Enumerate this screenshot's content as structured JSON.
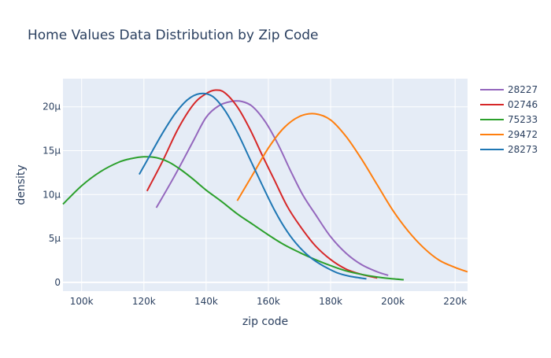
{
  "chart_data": {
    "type": "line",
    "title": "Home Values Data Distribution by Zip Code",
    "xlabel": "zip code",
    "ylabel": "density",
    "xlim": [
      94000,
      224000
    ],
    "ylim": [
      -1.0,
      23.2
    ],
    "y_unit": "μ",
    "grid": true,
    "legend_position": "right",
    "x_ticks": [
      {
        "value": 100000,
        "label": "100k"
      },
      {
        "value": 120000,
        "label": "120k"
      },
      {
        "value": 140000,
        "label": "140k"
      },
      {
        "value": 160000,
        "label": "160k"
      },
      {
        "value": 180000,
        "label": "180k"
      },
      {
        "value": 200000,
        "label": "200k"
      },
      {
        "value": 220000,
        "label": "220k"
      }
    ],
    "y_ticks": [
      {
        "value": 0,
        "label": "0"
      },
      {
        "value": 5,
        "label": "5μ"
      },
      {
        "value": 10,
        "label": "10μ"
      },
      {
        "value": 15,
        "label": "15μ"
      },
      {
        "value": 20,
        "label": "20μ"
      }
    ],
    "series": [
      {
        "name": "28227",
        "color": "#9467bd",
        "x": [
          124000,
          130000,
          136000,
          140000,
          144000,
          148000,
          151500,
          155000,
          159000,
          163000,
          167000,
          171000,
          175000,
          180000,
          185000,
          190000,
          195000,
          198500
        ],
        "y": [
          8.5,
          12.2,
          16.2,
          18.8,
          20.1,
          20.6,
          20.6,
          20.0,
          18.3,
          15.8,
          12.8,
          10.0,
          7.8,
          5.2,
          3.3,
          2.0,
          1.2,
          0.8
        ]
      },
      {
        "name": "02746",
        "color": "#d62728",
        "x": [
          121000,
          126000,
          131000,
          136000,
          140000,
          143000,
          146000,
          150000,
          154000,
          158000,
          162000,
          166000,
          170000,
          175000,
          180000,
          185000,
          190000,
          195000
        ],
        "y": [
          10.4,
          13.8,
          17.5,
          20.3,
          21.5,
          21.9,
          21.6,
          20.0,
          17.5,
          14.5,
          11.6,
          8.7,
          6.5,
          4.2,
          2.6,
          1.5,
          0.9,
          0.5
        ]
      },
      {
        "name": "75233",
        "color": "#2ca02c",
        "x": [
          94000,
          100000,
          106000,
          112000,
          116000,
          120000,
          124000,
          128000,
          132000,
          136000,
          140000,
          145000,
          150000,
          155000,
          160000,
          165000,
          170000,
          175000,
          180000,
          185000,
          190000,
          195000,
          200000,
          203500
        ],
        "y": [
          8.9,
          11.0,
          12.6,
          13.7,
          14.1,
          14.3,
          14.2,
          13.7,
          12.8,
          11.7,
          10.5,
          9.2,
          7.8,
          6.6,
          5.4,
          4.3,
          3.4,
          2.6,
          1.9,
          1.3,
          0.9,
          0.6,
          0.4,
          0.3
        ]
      },
      {
        "name": "29472",
        "color": "#ff7f0e",
        "x": [
          150000,
          155000,
          160000,
          165000,
          170000,
          175000,
          180000,
          185000,
          190000,
          195000,
          200000,
          205000,
          210000,
          215000,
          220000,
          224000
        ],
        "y": [
          9.3,
          12.3,
          15.3,
          17.6,
          18.9,
          19.2,
          18.5,
          16.6,
          14.0,
          11.1,
          8.2,
          5.8,
          3.9,
          2.5,
          1.7,
          1.2
        ]
      },
      {
        "name": "28273",
        "color": "#1f77b4",
        "x": [
          118500,
          122000,
          126000,
          130000,
          134000,
          138000,
          142000,
          146000,
          150000,
          154000,
          158000,
          162000,
          166000,
          170000,
          174000,
          178000,
          182000,
          186000,
          191500
        ],
        "y": [
          12.3,
          14.5,
          17.0,
          19.2,
          20.8,
          21.5,
          21.2,
          19.6,
          17.1,
          14.1,
          11.1,
          8.2,
          5.8,
          4.0,
          2.7,
          1.8,
          1.1,
          0.7,
          0.4
        ]
      }
    ]
  }
}
